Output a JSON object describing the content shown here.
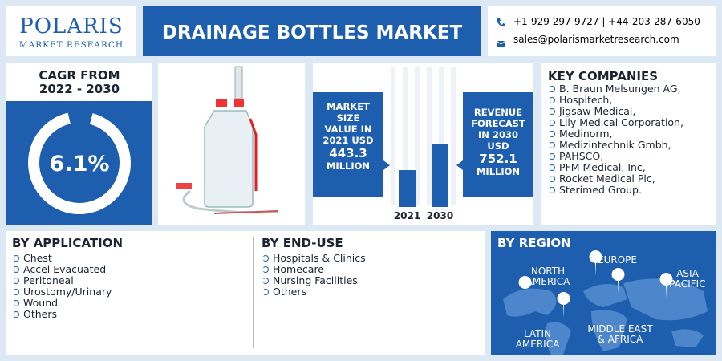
{
  "header": {
    "logo": "POLARIS",
    "logo_sub": "MARKET RESEARCH",
    "title": "DRAINAGE BOTTLES MARKET",
    "phone": "+1-929 297-9727 | +44-203-287-6050",
    "email": "sales@polarismarketresearch.com"
  },
  "cagr": {
    "label": "CAGR FROM 2022 - 2030",
    "value": "6.1%"
  },
  "market_size": {
    "label": "MARKET SIZE VALUE IN 2021 USD",
    "value": 443.3,
    "unit": "MILLION",
    "year": "2021"
  },
  "revenue_forecast": {
    "label": "REVENUE FORECAST IN 2030 USD",
    "value": 752.1,
    "unit": "MILLION",
    "year": "2030"
  },
  "key_companies": {
    "title": "KEY COMPANIES",
    "items": [
      "B. Braun Melsungen AG,",
      "Hospitech,",
      "Jigsaw Medical,",
      "Lily Medical Corporation,",
      "Medinorm,",
      "Medizintechnik Gmbh,",
      "PAHSCO,",
      "PFM Medical, Inc,",
      "Rocket Medical Plc,",
      "Sterimed Group."
    ]
  },
  "by_application": {
    "title": "BY APPLICATION",
    "items": [
      "Chest",
      "Accel Evacuated",
      "Peritoneal",
      "Urostomy/Urinary",
      "Wound",
      "Others"
    ]
  },
  "by_end_use": {
    "title": "BY END-USE",
    "items": [
      "Hospitals & Clinics",
      "Homecare",
      "Nursing Facilities",
      "Others"
    ]
  },
  "by_region": {
    "title": "BY REGION",
    "regions": [
      "NORTH AMERICA",
      "EUROPE",
      "ASIA PACIFIC",
      "LATIN AMERICA",
      "MIDDLE EAST & AFRICA"
    ]
  }
}
